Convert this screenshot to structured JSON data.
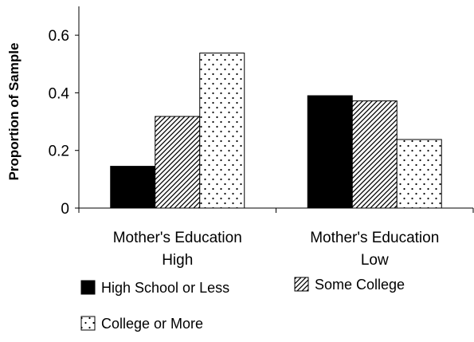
{
  "chart_data": {
    "type": "bar",
    "title": "",
    "xlabel": "",
    "ylabel": "Proportion of Sample",
    "ylim": [
      0,
      0.7
    ],
    "yticks": [
      0,
      0.2,
      0.4,
      0.6
    ],
    "ytick_labels": [
      "0",
      "0.2",
      "0.4",
      "0.6"
    ],
    "grid": false,
    "legend_position": "bottom",
    "categories": [
      [
        "Mother's Education",
        "High"
      ],
      [
        "Mother's Education",
        "Low"
      ]
    ],
    "series": [
      {
        "name": "High School or Less",
        "values": [
          0.145,
          0.39
        ],
        "pattern": "solid",
        "color": "#000000"
      },
      {
        "name": "Some College",
        "values": [
          0.318,
          0.372
        ],
        "pattern": "diagonal-hatch",
        "color": "#000000"
      },
      {
        "name": "College or More",
        "values": [
          0.538,
          0.238
        ],
        "pattern": "dots",
        "color": "#000000"
      }
    ]
  }
}
